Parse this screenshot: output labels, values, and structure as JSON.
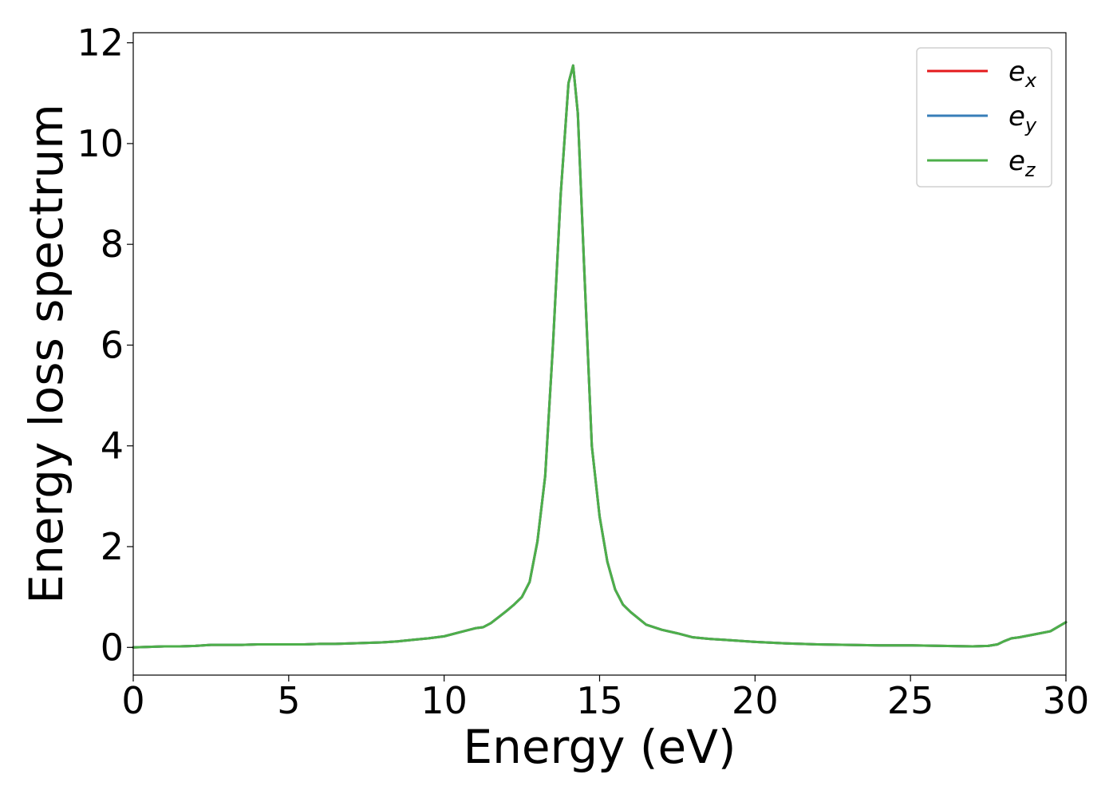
{
  "chart_data": {
    "type": "line",
    "title": "",
    "xlabel": "Energy (eV)",
    "ylabel": "Energy loss spectrum",
    "xlim": [
      0,
      30
    ],
    "ylim": [
      -0.55,
      12.2
    ],
    "xticks": [
      0,
      5,
      10,
      15,
      20,
      25,
      30
    ],
    "xtick_labels": [
      "0",
      "5",
      "10",
      "15",
      "20",
      "25",
      "30"
    ],
    "yticks": [
      0,
      2,
      4,
      6,
      8,
      10,
      12
    ],
    "ytick_labels": [
      "0",
      "2",
      "4",
      "6",
      "8",
      "10",
      "12"
    ],
    "grid": false,
    "legend_position": "top-right",
    "x": [
      0,
      0.5,
      1,
      1.5,
      2,
      2.5,
      3,
      3.5,
      4,
      4.5,
      5,
      5.5,
      6,
      6.5,
      7,
      7.5,
      8,
      8.5,
      9,
      9.5,
      10,
      10.5,
      11,
      11.25,
      11.5,
      11.75,
      12,
      12.25,
      12.5,
      12.75,
      13,
      13.25,
      13.5,
      13.75,
      14,
      14.15,
      14.3,
      14.5,
      14.75,
      15,
      15.25,
      15.5,
      15.75,
      16,
      16.5,
      17,
      17.5,
      18,
      18.5,
      19,
      20,
      21,
      22,
      23,
      24,
      25,
      26,
      27,
      27.5,
      27.8,
      28,
      28.25,
      28.5,
      29,
      29.5,
      30
    ],
    "series": [
      {
        "name_base": "e",
        "name_sub": "x",
        "color": "#e41a1c",
        "values": [
          0.0,
          0.01,
          0.02,
          0.02,
          0.03,
          0.05,
          0.05,
          0.05,
          0.06,
          0.06,
          0.06,
          0.06,
          0.07,
          0.07,
          0.08,
          0.09,
          0.1,
          0.12,
          0.15,
          0.18,
          0.22,
          0.3,
          0.38,
          0.4,
          0.48,
          0.6,
          0.72,
          0.85,
          1.0,
          1.3,
          2.1,
          3.4,
          6.0,
          9.0,
          11.2,
          11.55,
          10.6,
          7.6,
          4.0,
          2.6,
          1.7,
          1.15,
          0.85,
          0.7,
          0.45,
          0.35,
          0.28,
          0.2,
          0.17,
          0.15,
          0.11,
          0.08,
          0.06,
          0.05,
          0.04,
          0.04,
          0.03,
          0.02,
          0.03,
          0.06,
          0.12,
          0.18,
          0.2,
          0.26,
          0.32,
          0.5
        ]
      },
      {
        "name_base": "e",
        "name_sub": "y",
        "color": "#377eb8",
        "values": [
          0.0,
          0.01,
          0.02,
          0.02,
          0.03,
          0.05,
          0.05,
          0.05,
          0.06,
          0.06,
          0.06,
          0.06,
          0.07,
          0.07,
          0.08,
          0.09,
          0.1,
          0.12,
          0.15,
          0.18,
          0.22,
          0.3,
          0.38,
          0.4,
          0.48,
          0.6,
          0.72,
          0.85,
          1.0,
          1.3,
          2.1,
          3.4,
          6.0,
          9.0,
          11.2,
          11.55,
          10.6,
          7.6,
          4.0,
          2.6,
          1.7,
          1.15,
          0.85,
          0.7,
          0.45,
          0.35,
          0.28,
          0.2,
          0.17,
          0.15,
          0.11,
          0.08,
          0.06,
          0.05,
          0.04,
          0.04,
          0.03,
          0.02,
          0.03,
          0.06,
          0.12,
          0.18,
          0.2,
          0.26,
          0.32,
          0.5
        ]
      },
      {
        "name_base": "e",
        "name_sub": "z",
        "color": "#4daf4a",
        "values": [
          0.0,
          0.01,
          0.02,
          0.02,
          0.03,
          0.05,
          0.05,
          0.05,
          0.06,
          0.06,
          0.06,
          0.06,
          0.07,
          0.07,
          0.08,
          0.09,
          0.1,
          0.12,
          0.15,
          0.18,
          0.22,
          0.3,
          0.38,
          0.4,
          0.48,
          0.6,
          0.72,
          0.85,
          1.0,
          1.3,
          2.1,
          3.4,
          6.0,
          9.0,
          11.2,
          11.55,
          10.6,
          7.6,
          4.0,
          2.6,
          1.7,
          1.15,
          0.85,
          0.7,
          0.45,
          0.35,
          0.28,
          0.2,
          0.17,
          0.15,
          0.11,
          0.08,
          0.06,
          0.05,
          0.04,
          0.04,
          0.03,
          0.02,
          0.03,
          0.06,
          0.12,
          0.18,
          0.2,
          0.26,
          0.32,
          0.5
        ]
      }
    ]
  }
}
